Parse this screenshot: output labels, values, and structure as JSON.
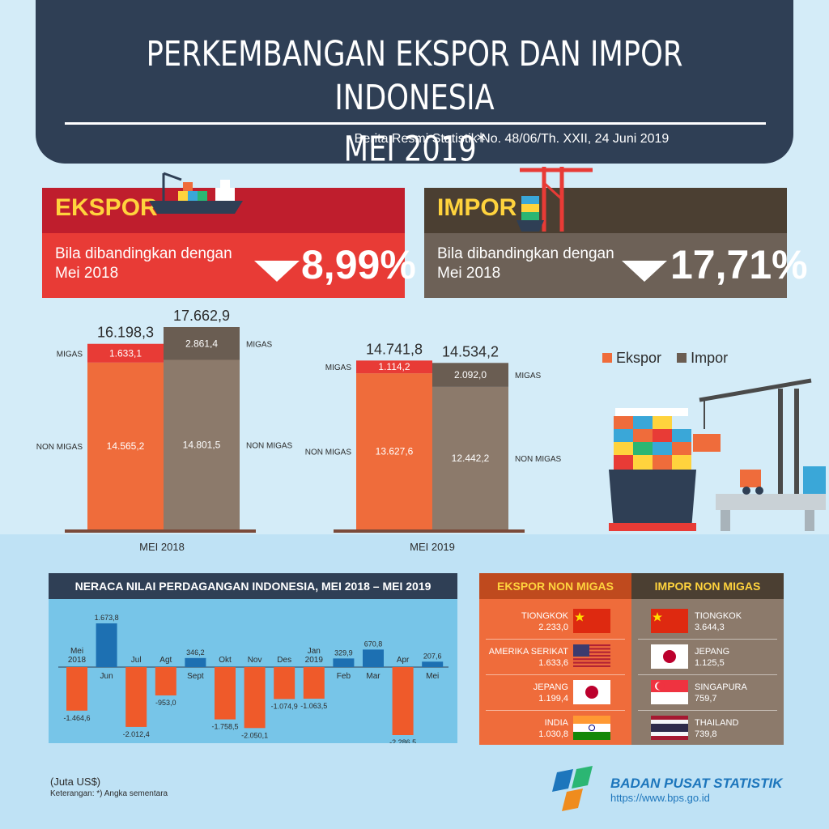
{
  "header": {
    "title_line1": "PERKEMBANGAN EKSPOR DAN IMPOR INDONESIA",
    "title_line2": "MEI 2019",
    "title_mark": "*",
    "subtitle": "Berita Resmi Statistik No. 48/06/Th. XXII, 24 Juni 2019"
  },
  "ekspor_card": {
    "label": "EKSPOR",
    "desc_line1": "Bila dibandingkan dengan",
    "desc_line2": "Mei 2018",
    "percent": "8,99%",
    "color_header": "#bf1e2d",
    "color_body": "#e83b36"
  },
  "impor_card": {
    "label": "IMPOR",
    "desc_line1": "Bila dibandingkan dengan",
    "desc_line2": "Mei 2018",
    "percent": "17,71%",
    "color_header": "#4b3f32",
    "color_body": "#6d6157"
  },
  "legend": {
    "ekspor": "Ekspor",
    "impor": "Impor"
  },
  "colors": {
    "ekspor": "#ef6c3b",
    "impor": "#8c7a6b",
    "migas_ekspor": "#e83b36",
    "migas_impor": "#6a5d52",
    "positive": "#1d70b2",
    "negative": "#ef5a2a"
  },
  "chart_data": [
    {
      "type": "bar",
      "stacked": true,
      "categories": [
        "MEI 2018",
        "MEI 2019"
      ],
      "series": [
        {
          "name": "Ekspor",
          "groups": [
            {
              "migas": "1.633,1",
              "non_migas": "14.565,2",
              "total": "16.198,3",
              "migas_v": 1633.1,
              "non_migas_v": 14565.2
            },
            {
              "migas": "1.114,2",
              "non_migas": "13.627,6",
              "total": "14.741,8",
              "migas_v": 1114.2,
              "non_migas_v": 13627.6
            }
          ]
        },
        {
          "name": "Impor",
          "groups": [
            {
              "migas": "2.861,4",
              "non_migas": "14.801,5",
              "total": "17.662,9",
              "migas_v": 2861.4,
              "non_migas_v": 14801.5
            },
            {
              "migas": "2.092,0",
              "non_migas": "12.442,2",
              "total": "14.534,2",
              "migas_v": 2092.0,
              "non_migas_v": 12442.2
            }
          ]
        }
      ],
      "segment_labels": {
        "migas": "MIGAS",
        "non_migas": "NON MIGAS"
      }
    },
    {
      "type": "bar",
      "title": "NERACA NILAI PERDAGANGAN INDONESIA, MEI 2018 – MEI 2019",
      "categories": [
        "Mei\n2018",
        "Jun",
        "Jul",
        "Agt",
        "Sept",
        "Okt",
        "Nov",
        "Des",
        "Jan\n2019",
        "Feb",
        "Mar",
        "Apr",
        "Mei"
      ],
      "values": [
        -1464.6,
        1673.8,
        -2012.4,
        -953.0,
        346.2,
        -1758.5,
        -2050.1,
        -1074.9,
        -1063.5,
        329.9,
        670.8,
        -2286.5,
        207.6
      ],
      "value_labels": [
        "-1.464,6",
        "1.673,8",
        "-2.012,4",
        "-953,0",
        "346,2",
        "-1.758,5",
        "-2.050,1",
        "-1.074,9",
        "-1.063,5",
        "329,9",
        "670,8",
        "-2.286,5",
        "207,6"
      ]
    }
  ],
  "partners": {
    "ekspor_title": "EKSPOR NON MIGAS",
    "impor_title": "IMPOR NON MIGAS",
    "ekspor": [
      {
        "country": "TIONGKOK",
        "value": "2.233,0",
        "flag": "china-flag"
      },
      {
        "country": "AMERIKA SERIKAT",
        "value": "1.633,6",
        "flag": "usa-flag"
      },
      {
        "country": "JEPANG",
        "value": "1.199,4",
        "flag": "japan-flag"
      },
      {
        "country": "INDIA",
        "value": "1.030,8",
        "flag": "india-flag"
      }
    ],
    "impor": [
      {
        "country": "TIONGKOK",
        "value": "3.644,3",
        "flag": "china-flag"
      },
      {
        "country": "JEPANG",
        "value": "1.125,5",
        "flag": "japan-flag"
      },
      {
        "country": "SINGAPURA",
        "value": "759,7",
        "flag": "singapore-flag"
      },
      {
        "country": "THAILAND",
        "value": "739,8",
        "flag": "thailand-flag"
      }
    ]
  },
  "footer": {
    "unit": "(Juta US$)",
    "note": "Keterangan: *) Angka sementara",
    "agency": "BADAN PUSAT STATISTIK",
    "url": "https://www.bps.go.id"
  }
}
